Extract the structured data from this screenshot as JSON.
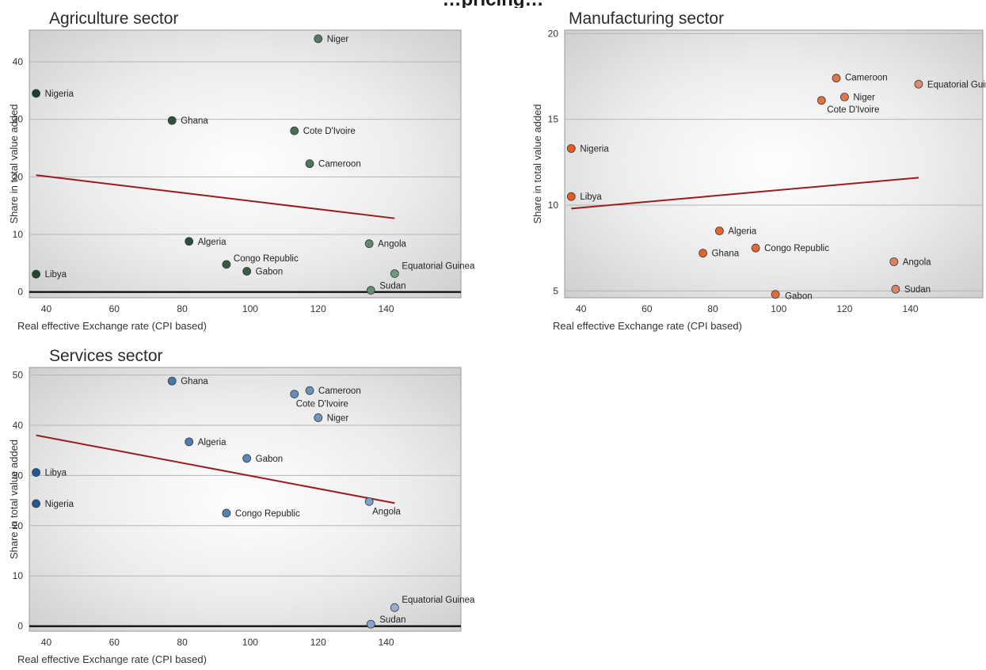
{
  "figure_title": "…pricing…",
  "chart_data": [
    {
      "type": "scatter",
      "title": "Agriculture sector",
      "xlabel": "Real effective Exchange rate (CPI based)",
      "ylabel": "Share in total value added",
      "xlim": [
        35,
        162
      ],
      "ylim": [
        -1,
        45.5
      ],
      "xticks": [
        40,
        60,
        80,
        100,
        120,
        140
      ],
      "yticks": [
        0,
        10,
        20,
        30,
        40
      ],
      "zero_line": true,
      "colors": {
        "dark": "#1f3d2b",
        "light": "#7aab8b",
        "trend": "#9b1c1c"
      },
      "trendline": [
        [
          37,
          20.3
        ],
        [
          142.5,
          12.8
        ]
      ],
      "points": [
        {
          "label": "Niger",
          "x": 120,
          "y": 44,
          "tone": 0.55,
          "lx": 6,
          "ly": 0
        },
        {
          "label": "Nigeria",
          "x": 37,
          "y": 34.5,
          "tone": 0.0,
          "lx": 6,
          "ly": 0
        },
        {
          "label": "Ghana",
          "x": 77,
          "y": 29.8,
          "tone": 0.2,
          "lx": 6,
          "ly": 0
        },
        {
          "label": "Cote D'Ivoire",
          "x": 113,
          "y": 28,
          "tone": 0.45,
          "lx": 6,
          "ly": 0
        },
        {
          "label": "Cameroon",
          "x": 117.5,
          "y": 22.3,
          "tone": 0.5,
          "lx": 6,
          "ly": 0
        },
        {
          "label": "Algeria",
          "x": 82,
          "y": 8.8,
          "tone": 0.15,
          "lx": 6,
          "ly": 0
        },
        {
          "label": "Angola",
          "x": 135,
          "y": 8.4,
          "tone": 0.7,
          "lx": 6,
          "ly": 0
        },
        {
          "label": "Congo Republic",
          "x": 93,
          "y": 4.8,
          "tone": 0.25,
          "lx": 4,
          "ly": -8
        },
        {
          "label": "Gabon",
          "x": 99,
          "y": 3.6,
          "tone": 0.3,
          "lx": 6,
          "ly": 0
        },
        {
          "label": "Equatorial Guinea",
          "x": 142.5,
          "y": 3.2,
          "tone": 0.85,
          "lx": 4,
          "ly": -10
        },
        {
          "label": "Libya",
          "x": 37,
          "y": 3.1,
          "tone": 0.05,
          "lx": 6,
          "ly": 0
        },
        {
          "label": "Sudan",
          "x": 135.5,
          "y": 0.3,
          "tone": 0.75,
          "lx": 6,
          "ly": -6
        }
      ]
    },
    {
      "type": "scatter",
      "title": "Manufacturing sector",
      "xlabel": "Real effective Exchange rate (CPI based)",
      "ylabel": "Share in total value added",
      "xlim": [
        35,
        162
      ],
      "ylim": [
        4.6,
        20.2
      ],
      "xticks": [
        40,
        60,
        80,
        100,
        120,
        140
      ],
      "yticks": [
        5,
        10,
        15,
        20
      ],
      "zero_line": false,
      "colors": {
        "dark": "#e85a1b",
        "light": "#d8907a",
        "trend": "#9b1c1c"
      },
      "trendline": [
        [
          37,
          9.8
        ],
        [
          142.5,
          11.6
        ]
      ],
      "points": [
        {
          "label": "Cameroon",
          "x": 117.5,
          "y": 17.4,
          "tone": 0.5,
          "lx": 6,
          "ly": -1
        },
        {
          "label": "Equatorial Guinea",
          "x": 142.5,
          "y": 17.05,
          "tone": 0.9,
          "lx": 6,
          "ly": 0
        },
        {
          "label": "Niger",
          "x": 120,
          "y": 16.3,
          "tone": 0.55,
          "lx": 6,
          "ly": 0
        },
        {
          "label": "Cote D'Ivoire",
          "x": 113,
          "y": 16.1,
          "tone": 0.45,
          "lx": 2,
          "ly": 11
        },
        {
          "label": "Nigeria",
          "x": 37,
          "y": 13.3,
          "tone": 0.0,
          "lx": 6,
          "ly": 0
        },
        {
          "label": "Libya",
          "x": 37,
          "y": 10.5,
          "tone": 0.05,
          "lx": 6,
          "ly": 0
        },
        {
          "label": "Algeria",
          "x": 82,
          "y": 8.5,
          "tone": 0.2,
          "lx": 6,
          "ly": 0
        },
        {
          "label": "Congo Republic",
          "x": 93,
          "y": 7.5,
          "tone": 0.3,
          "lx": 6,
          "ly": 0
        },
        {
          "label": "Ghana",
          "x": 77,
          "y": 7.2,
          "tone": 0.15,
          "lx": 6,
          "ly": 0
        },
        {
          "label": "Angola",
          "x": 135,
          "y": 6.7,
          "tone": 0.75,
          "lx": 6,
          "ly": 0
        },
        {
          "label": "Sudan",
          "x": 135.5,
          "y": 5.1,
          "tone": 0.8,
          "lx": 6,
          "ly": 0
        },
        {
          "label": "Gabon",
          "x": 99,
          "y": 4.8,
          "tone": 0.35,
          "lx": 7,
          "ly": 2
        }
      ]
    },
    {
      "type": "scatter",
      "title": "Services sector",
      "xlabel": "Real effective Exchange rate (CPI based)",
      "ylabel": "Share in total value added",
      "xlim": [
        35,
        162
      ],
      "ylim": [
        -1,
        51.5
      ],
      "xticks": [
        40,
        60,
        80,
        100,
        120,
        140
      ],
      "yticks": [
        0,
        10,
        20,
        30,
        40,
        50
      ],
      "zero_line": true,
      "colors": {
        "dark": "#1f5a96",
        "light": "#a7bfdc",
        "trend": "#9b1c1c"
      },
      "trendline": [
        [
          37,
          38
        ],
        [
          142.5,
          24.5
        ]
      ],
      "points": [
        {
          "label": "Ghana",
          "x": 77,
          "y": 48.8,
          "tone": 0.3,
          "lx": 6,
          "ly": 0
        },
        {
          "label": "Cameroon",
          "x": 117.5,
          "y": 46.9,
          "tone": 0.55,
          "lx": 6,
          "ly": 0
        },
        {
          "label": "Cote D'Ivoire",
          "x": 113,
          "y": 46.2,
          "tone": 0.5,
          "lx": -3,
          "ly": 12
        },
        {
          "label": "Niger",
          "x": 120,
          "y": 41.5,
          "tone": 0.6,
          "lx": 6,
          "ly": 0
        },
        {
          "label": "Algeria",
          "x": 82,
          "y": 36.7,
          "tone": 0.35,
          "lx": 6,
          "ly": 0
        },
        {
          "label": "Gabon",
          "x": 99,
          "y": 33.4,
          "tone": 0.45,
          "lx": 6,
          "ly": 0
        },
        {
          "label": "Libya",
          "x": 37,
          "y": 30.6,
          "tone": 0.0,
          "lx": 6,
          "ly": 0
        },
        {
          "label": "Nigeria",
          "x": 37,
          "y": 24.4,
          "tone": 0.0,
          "lx": 6,
          "ly": 0
        },
        {
          "label": "Angola",
          "x": 135,
          "y": 24.8,
          "tone": 0.7,
          "lx": -1,
          "ly": 12
        },
        {
          "label": "Congo Republic",
          "x": 93,
          "y": 22.5,
          "tone": 0.4,
          "lx": 6,
          "ly": 0
        },
        {
          "label": "Equatorial Guinea",
          "x": 142.5,
          "y": 3.7,
          "tone": 0.85,
          "lx": 4,
          "ly": -10
        },
        {
          "label": "Sudan",
          "x": 135.5,
          "y": 0.4,
          "tone": 0.75,
          "lx": 6,
          "ly": -6
        }
      ]
    }
  ]
}
